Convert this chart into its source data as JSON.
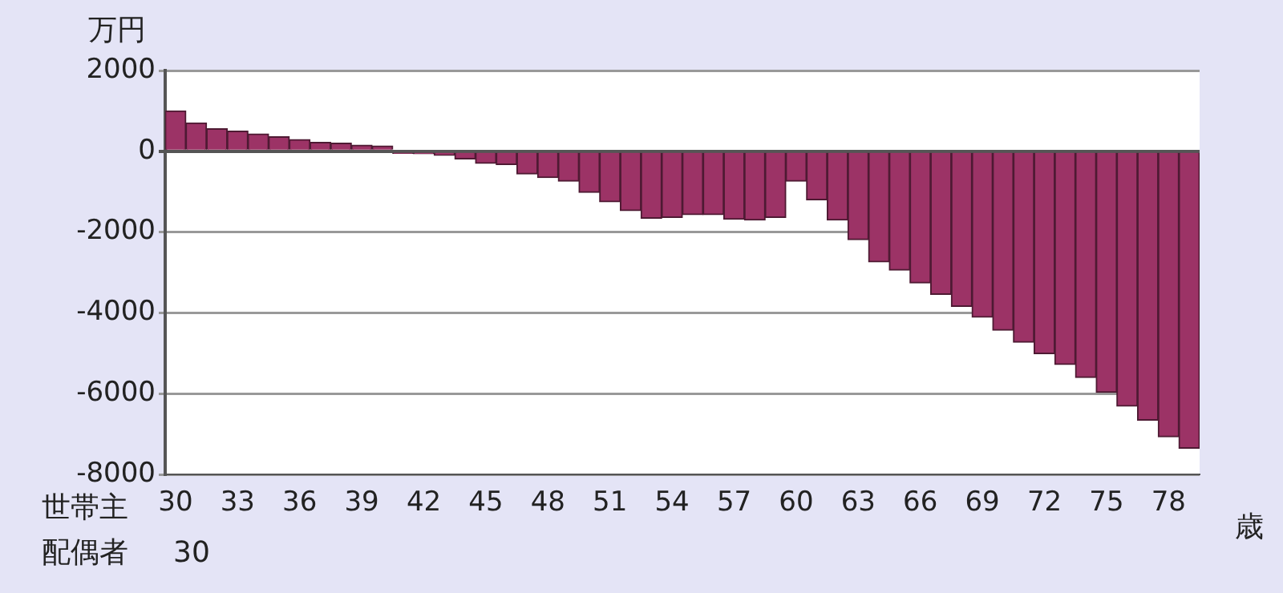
{
  "chart_data": {
    "type": "bar",
    "ylabel": "万円",
    "xlabel": "歳",
    "categories": [
      "30",
      null,
      null,
      "33",
      null,
      null,
      "36",
      null,
      null,
      "39",
      null,
      null,
      "42",
      null,
      null,
      "45",
      null,
      null,
      "48",
      null,
      null,
      "51",
      null,
      null,
      "54",
      null,
      null,
      "57",
      null,
      null,
      "60",
      null,
      null,
      "63",
      null,
      null,
      "66",
      null,
      null,
      "69",
      null,
      null,
      "72",
      null,
      null,
      "75",
      null,
      null,
      "78",
      null
    ],
    "values": [
      1000,
      700,
      560,
      500,
      430,
      360,
      290,
      220,
      200,
      150,
      130,
      -50,
      -60,
      -100,
      -190,
      -300,
      -330,
      -560,
      -650,
      -740,
      -1020,
      -1250,
      -1470,
      -1660,
      -1640,
      -1570,
      -1570,
      -1680,
      -1700,
      -1640,
      -740,
      -1200,
      -1700,
      -2190,
      -2740,
      -2940,
      -3260,
      -3540,
      -3840,
      -4110,
      -4430,
      -4730,
      -5010,
      -5280,
      -5600,
      -5970,
      -6310,
      -6660,
      -7070,
      -7350
    ],
    "color": "#9c3366",
    "ylim": [
      -8000,
      2000
    ],
    "yticks": [
      -8000,
      -6000,
      -4000,
      -2000,
      0,
      2000
    ],
    "grid": "y",
    "legend": false,
    "annotations": [
      "世帯主",
      "配偶者",
      "30"
    ]
  }
}
